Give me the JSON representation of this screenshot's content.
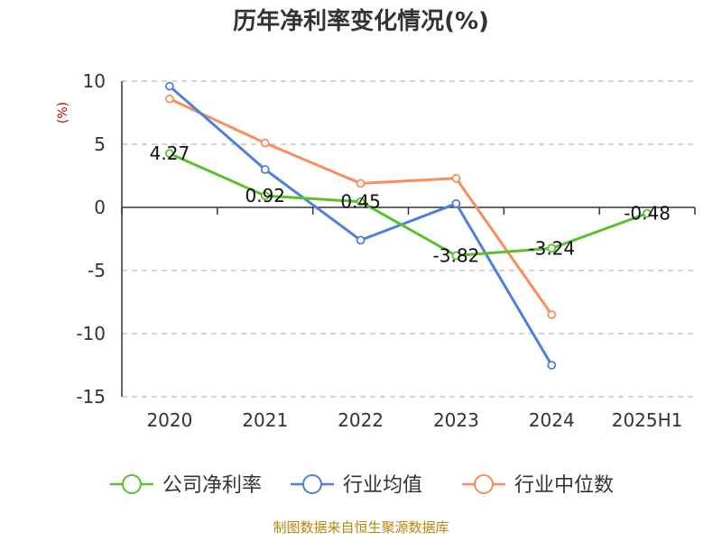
{
  "chart_data": {
    "type": "line",
    "title": "历年净利率变化情况(%)",
    "ylabel": "(%)",
    "xlabel": "",
    "categories": [
      "2020",
      "2021",
      "2022",
      "2023",
      "2024",
      "2025H1"
    ],
    "ylim": [
      -15,
      10
    ],
    "yticks": [
      10,
      5,
      0,
      -5,
      -10,
      -15
    ],
    "grid": true,
    "legend_position": "bottom",
    "series": [
      {
        "name": "公司净利率",
        "color": "#5cbf2e",
        "values": [
          4.27,
          0.92,
          0.45,
          -3.82,
          -3.24,
          -0.48
        ],
        "labels": [
          "4.27",
          "0.92",
          "0.45",
          "-3.82",
          "-3.24",
          "-0.48"
        ]
      },
      {
        "name": "行业均值",
        "color": "#4f7fdc",
        "values": [
          9.6,
          3.0,
          -2.6,
          0.3,
          -12.5,
          null
        ]
      },
      {
        "name": "行业中位数",
        "color": "#f98e5a",
        "values": [
          8.6,
          5.1,
          1.9,
          2.3,
          -8.5,
          null
        ]
      }
    ],
    "source": "制图数据来自恒生聚源数据库"
  }
}
